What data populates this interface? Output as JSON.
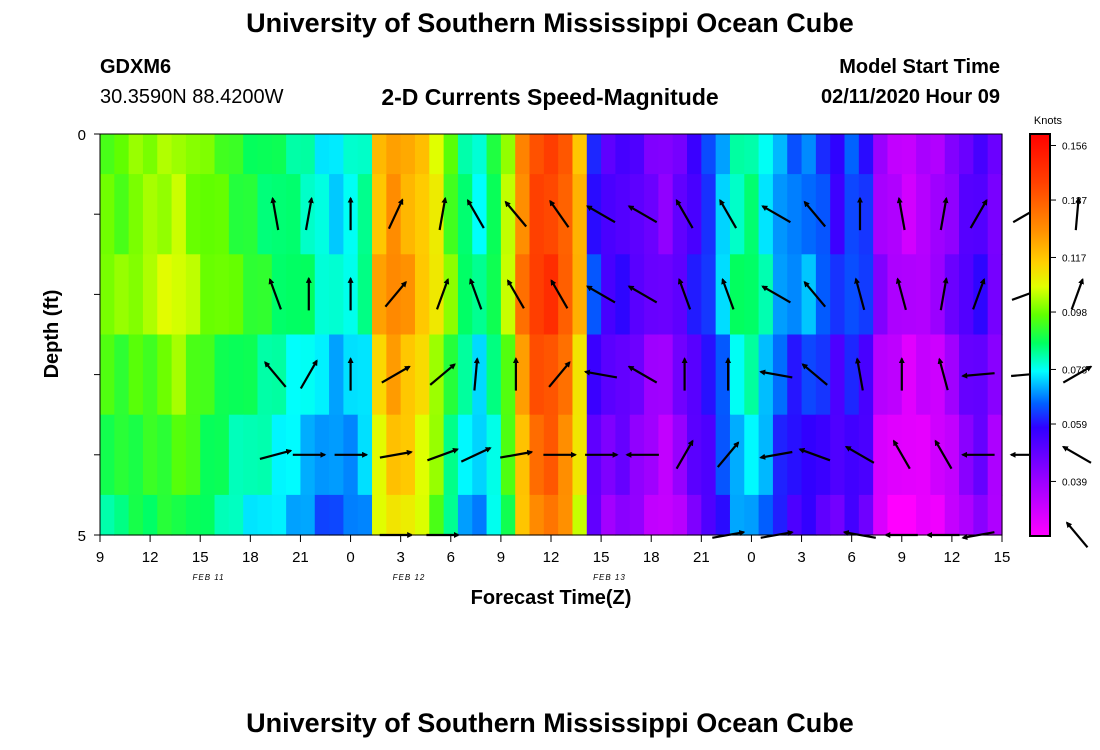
{
  "header": {
    "title": "University of Southern Mississippi Ocean Cube",
    "station_id": "GDXM6",
    "location": "30.3590N 88.4200W",
    "subtitle": "2-D Currents Speed-Magnitude",
    "model_start_label": "Model Start Time",
    "model_start_value": "02/11/2020 Hour 09"
  },
  "footer": {
    "title": "University of Southern Mississippi Ocean Cube"
  },
  "chart_data": {
    "type": "heatmap",
    "xlabel": "Forecast Time(Z)",
    "ylabel": "Depth (ft)",
    "x_tick_labels": [
      "9",
      "12",
      "15",
      "18",
      "21",
      "0",
      "3",
      "6",
      "9",
      "12",
      "15",
      "18",
      "21",
      "0",
      "3",
      "6",
      "9",
      "12",
      "15"
    ],
    "date_labels": [
      {
        "label": "FEB 11",
        "tick_index": 4
      },
      {
        "label": "FEB 12",
        "tick_index": 12
      },
      {
        "label": "FEB 13",
        "tick_index": 20
      }
    ],
    "y_tick_labels": [
      "0",
      "5"
    ],
    "ylim": [
      0,
      5
    ],
    "colorbar": {
      "title": "Knots",
      "tick_labels": [
        "0.156",
        "0.137",
        "0.117",
        "0.098",
        "0.078",
        "0.059",
        "0.039"
      ],
      "range": [
        0.02,
        0.16
      ]
    },
    "speed_by_hour": [
      0.097,
      0.097,
      0.099,
      0.1,
      0.102,
      0.104,
      0.1,
      0.097,
      0.095,
      0.092,
      0.09,
      0.088,
      0.086,
      0.084,
      0.082,
      0.078,
      0.076,
      0.078,
      0.082,
      0.118,
      0.126,
      0.122,
      0.116,
      0.108,
      0.095,
      0.085,
      0.08,
      0.088,
      0.102,
      0.128,
      0.142,
      0.144,
      0.136,
      0.118,
      0.06,
      0.052,
      0.054,
      0.05,
      0.045,
      0.042,
      0.048,
      0.056,
      0.062,
      0.072,
      0.082,
      0.085,
      0.078,
      0.07,
      0.066,
      0.068,
      0.064,
      0.058,
      0.064,
      0.06,
      0.038,
      0.034,
      0.031,
      0.034,
      0.036,
      0.042,
      0.05,
      0.054,
      0.045
    ],
    "depth_offsets": [
      0.0,
      0.0,
      0.003,
      -0.004,
      -0.008,
      -0.012
    ],
    "vectors": {
      "x_hours": [
        10.5,
        12.5,
        15.0,
        17.7,
        20.5,
        22.5,
        24.9,
        27.5,
        30.0,
        32.5,
        35.0,
        37.6,
        40.5,
        42.8,
        45.5,
        48.0,
        50.5,
        52.6,
        55.5,
        58.5
      ],
      "depth_rows": [
        {
          "depth": 1,
          "dirs": [
            350,
            10,
            0,
            25,
            10,
            330,
            320,
            325,
            300,
            300,
            330,
            330,
            300,
            320,
            0,
            350,
            10,
            30,
            60,
            5
          ]
        },
        {
          "depth": 2,
          "dirs": [
            340,
            0,
            0,
            40,
            20,
            340,
            330,
            330,
            300,
            300,
            340,
            340,
            300,
            320,
            345,
            345,
            10,
            20,
            70,
            20
          ]
        },
        {
          "depth": 3,
          "dirs": [
            320,
            30,
            0,
            60,
            50,
            5,
            0,
            40,
            280,
            300,
            0,
            0,
            280,
            310,
            350,
            0,
            345,
            265,
            85,
            60
          ]
        },
        {
          "depth": 4,
          "dirs": [
            75,
            90,
            90,
            80,
            70,
            65,
            80,
            90,
            90,
            270,
            30,
            40,
            260,
            290,
            300,
            330,
            330,
            270,
            270,
            300
          ]
        },
        {
          "depth": 5,
          "dirs": [
            null,
            null,
            null,
            90,
            90,
            null,
            null,
            null,
            null,
            null,
            null,
            80,
            80,
            null,
            280,
            270,
            270,
            260,
            null,
            320
          ]
        }
      ]
    }
  }
}
